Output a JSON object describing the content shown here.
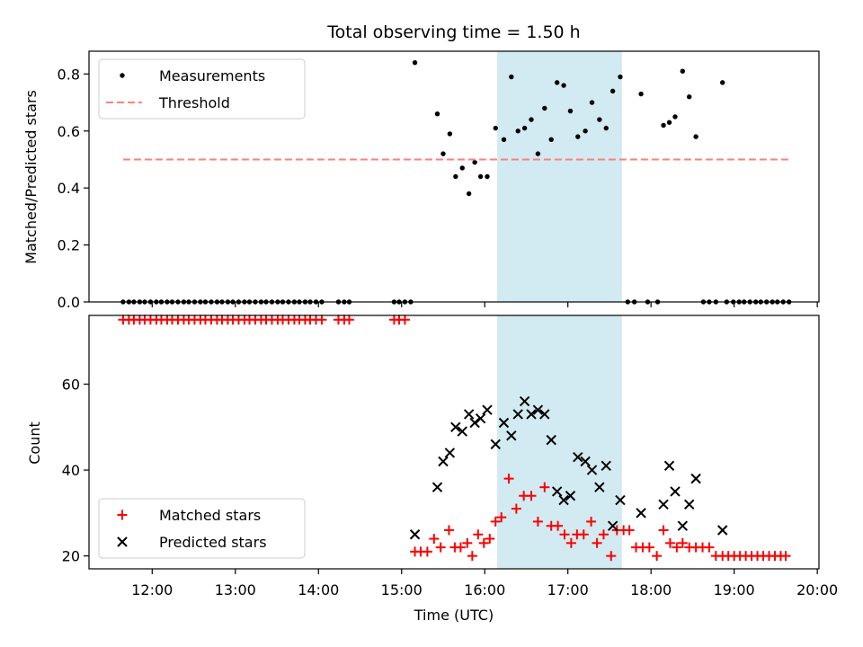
{
  "chart_data": [
    {
      "type": "scatter",
      "title": "Total observing time = 1.50 h",
      "ylabel": "Matched/Predicted stars",
      "xlim": [
        11.24,
        20.02
      ],
      "ylim": [
        0.0,
        0.88
      ],
      "yticks": [
        "0.0",
        "0.2",
        "0.4",
        "0.6",
        "0.8"
      ],
      "ytick_values": [
        0.0,
        0.2,
        0.4,
        0.6,
        0.8
      ],
      "shaded_region": [
        16.15,
        17.65
      ],
      "shade_color": "#add8e6",
      "legend": "top-left",
      "series": [
        {
          "name": "Measurements",
          "kind": "dot",
          "color": "#000000",
          "x": [
            11.65,
            11.72,
            11.78,
            11.85,
            11.91,
            11.98,
            12.05,
            12.11,
            12.18,
            12.24,
            12.31,
            12.38,
            12.44,
            12.51,
            12.58,
            12.64,
            12.71,
            12.78,
            12.84,
            12.91,
            12.97,
            13.04,
            13.11,
            13.17,
            13.24,
            13.31,
            13.37,
            13.44,
            13.51,
            13.57,
            13.64,
            13.71,
            13.77,
            13.84,
            13.9,
            13.97,
            14.04,
            14.24,
            14.31,
            14.37,
            14.91,
            14.97,
            15.04,
            15.11,
            15.16,
            15.43,
            15.5,
            15.58,
            15.65,
            15.73,
            15.81,
            15.88,
            15.95,
            16.03,
            16.13,
            16.23,
            16.32,
            16.4,
            16.48,
            16.56,
            16.64,
            16.72,
            16.8,
            16.87,
            16.95,
            17.03,
            17.12,
            17.21,
            17.29,
            17.38,
            17.46,
            17.54,
            17.63,
            17.72,
            17.8,
            17.88,
            17.96,
            18.08,
            18.15,
            18.22,
            18.29,
            18.38,
            18.46,
            18.54,
            18.63,
            18.7,
            18.78,
            18.86,
            18.91,
            18.99,
            19.06,
            19.12,
            19.19,
            19.26,
            19.32,
            19.39,
            19.46,
            19.52,
            19.59,
            19.66
          ],
          "y": [
            0,
            0,
            0,
            0,
            0,
            0,
            0,
            0,
            0,
            0,
            0,
            0,
            0,
            0,
            0,
            0,
            0,
            0,
            0,
            0,
            0,
            0,
            0,
            0,
            0,
            0,
            0,
            0,
            0,
            0,
            0,
            0,
            0,
            0,
            0,
            0,
            0,
            0,
            0,
            0,
            0,
            0,
            0,
            0,
            0.84,
            0.66,
            0.52,
            0.59,
            0.44,
            0.47,
            0.38,
            0.49,
            0.44,
            0.44,
            0.61,
            0.57,
            0.79,
            0.6,
            0.61,
            0.64,
            0.52,
            0.68,
            0.57,
            0.77,
            0.76,
            0.67,
            0.58,
            0.6,
            0.7,
            0.64,
            0.61,
            0.74,
            0.79,
            0,
            0,
            0.73,
            0,
            0,
            0.62,
            0.63,
            0.65,
            0.81,
            0.72,
            0.58,
            0,
            0,
            0,
            0.77,
            0,
            0,
            0,
            0,
            0,
            0,
            0,
            0,
            0,
            0,
            0,
            0
          ]
        },
        {
          "name": "Threshold",
          "kind": "dashed-line",
          "color": "#ff7f7f",
          "x": [
            11.65,
            19.66
          ],
          "y": [
            0.5,
            0.5
          ]
        }
      ]
    },
    {
      "type": "scatter",
      "xlabel": "Time (UTC)",
      "ylabel": "Count",
      "xlim": [
        11.24,
        20.02
      ],
      "ylim": [
        17,
        76
      ],
      "xticks": [
        "12:00",
        "13:00",
        "14:00",
        "15:00",
        "16:00",
        "17:00",
        "18:00",
        "19:00",
        "20:00"
      ],
      "xtick_values": [
        12,
        13,
        14,
        15,
        16,
        17,
        18,
        19,
        20
      ],
      "yticks": [
        "20",
        "40",
        "60"
      ],
      "ytick_values": [
        20,
        40,
        60
      ],
      "shaded_region": [
        16.15,
        17.65
      ],
      "shade_color": "#add8e6",
      "legend": "bottom-left",
      "series": [
        {
          "name": "Matched stars",
          "kind": "plus",
          "color": "#ff0000",
          "x": [
            11.65,
            11.72,
            11.78,
            11.85,
            11.91,
            11.98,
            12.05,
            12.11,
            12.18,
            12.24,
            12.31,
            12.38,
            12.44,
            12.51,
            12.58,
            12.64,
            12.71,
            12.78,
            12.84,
            12.91,
            12.97,
            13.04,
            13.11,
            13.17,
            13.24,
            13.31,
            13.37,
            13.44,
            13.51,
            13.57,
            13.64,
            13.71,
            13.77,
            13.84,
            13.9,
            13.97,
            14.04,
            14.24,
            14.31,
            14.37,
            14.91,
            14.97,
            15.04,
            15.16,
            15.23,
            15.31,
            15.39,
            15.47,
            15.57,
            15.64,
            15.71,
            15.79,
            15.85,
            15.92,
            15.99,
            16.06,
            16.13,
            16.2,
            16.29,
            16.38,
            16.47,
            16.56,
            16.64,
            16.72,
            16.8,
            16.88,
            16.96,
            17.04,
            17.11,
            17.19,
            17.28,
            17.35,
            17.43,
            17.52,
            17.59,
            17.67,
            17.74,
            17.82,
            17.9,
            17.98,
            18.07,
            18.15,
            18.23,
            18.31,
            18.38,
            18.46,
            18.54,
            18.62,
            18.7,
            18.78,
            18.86,
            18.93,
            19.0,
            19.07,
            19.14,
            19.21,
            19.28,
            19.35,
            19.42,
            19.49,
            19.56,
            19.62
          ],
          "y": [
            75,
            75,
            75,
            75,
            75,
            75,
            75,
            75,
            75,
            75,
            75,
            75,
            75,
            75,
            75,
            75,
            75,
            75,
            75,
            75,
            75,
            75,
            75,
            75,
            75,
            75,
            75,
            75,
            75,
            75,
            75,
            75,
            75,
            75,
            75,
            75,
            75,
            75,
            75,
            75,
            75,
            75,
            75,
            21,
            21,
            21,
            24,
            22,
            26,
            22,
            22,
            23,
            20,
            25,
            23,
            24,
            28,
            29,
            38,
            31,
            34,
            34,
            28,
            36,
            27,
            27,
            25,
            23,
            25,
            25,
            28,
            23,
            25,
            20,
            26,
            26,
            26,
            22,
            22,
            22,
            20,
            26,
            23,
            22,
            23,
            22,
            22,
            22,
            22,
            20,
            20,
            20,
            20,
            20,
            20,
            20,
            20,
            20,
            20,
            20,
            20,
            20
          ]
        },
        {
          "name": "Predicted stars",
          "kind": "x",
          "color": "#000000",
          "x": [
            15.16,
            15.43,
            15.5,
            15.58,
            15.65,
            15.73,
            15.81,
            15.88,
            15.95,
            16.03,
            16.13,
            16.23,
            16.32,
            16.4,
            16.48,
            16.56,
            16.64,
            16.72,
            16.8,
            16.87,
            16.95,
            17.03,
            17.12,
            17.21,
            17.29,
            17.38,
            17.46,
            17.54,
            17.63,
            17.88,
            18.15,
            18.22,
            18.29,
            18.38,
            18.46,
            18.54,
            18.86
          ],
          "y": [
            25,
            36,
            42,
            44,
            50,
            49,
            53,
            51,
            52,
            54,
            46,
            51,
            48,
            53,
            56,
            53,
            54,
            53,
            47,
            35,
            33,
            34,
            43,
            42,
            40,
            36,
            41,
            27,
            33,
            30,
            32,
            41,
            35,
            27,
            32,
            38,
            26
          ]
        }
      ]
    }
  ]
}
